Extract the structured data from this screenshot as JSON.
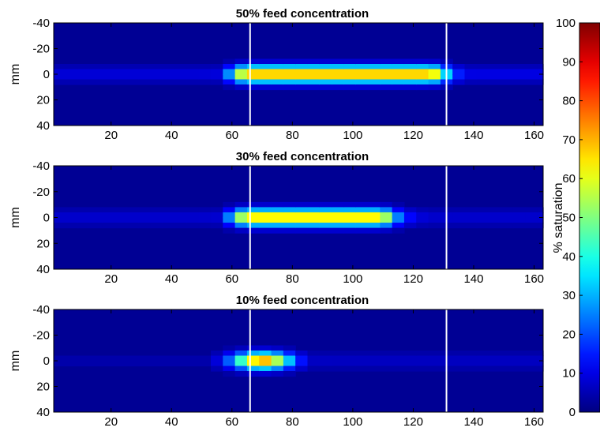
{
  "chart_data": {
    "type": "heatmap",
    "colormap": "jet",
    "x_ticks": [
      20,
      40,
      60,
      80,
      100,
      120,
      140,
      160
    ],
    "y_ticks": [
      -40,
      -20,
      0,
      20,
      40
    ],
    "xlim": [
      1,
      163
    ],
    "ylim": [
      -40,
      40
    ],
    "ylabel": "mm",
    "marker_lines_x": [
      66,
      131
    ],
    "marker_line_color": "#ffffff",
    "panels": [
      {
        "title": "50% feed concentration",
        "ylabel": "mm",
        "peak_saturation": 71,
        "region_x": [
          66,
          125
        ],
        "region_sigma_x": 5,
        "center_y": 0,
        "sigma_y": 4.5,
        "profile_x": [
          58,
          62,
          66,
          70,
          78,
          90,
          100,
          108,
          116,
          124,
          130,
          138
        ],
        "profile_v": [
          12,
          30,
          50,
          62,
          66,
          68,
          70,
          71,
          66,
          55,
          36,
          14
        ]
      },
      {
        "title": "30% feed concentration",
        "ylabel": "mm",
        "peak_saturation": 67,
        "region_x": [
          66,
          108
        ],
        "region_sigma_x": 5,
        "center_y": 0,
        "sigma_y": 4.5,
        "profile_x": [
          58,
          62,
          66,
          70,
          78,
          84,
          90,
          96,
          104,
          110,
          116,
          124
        ],
        "profile_v": [
          10,
          28,
          47,
          60,
          64,
          66,
          67,
          65,
          58,
          44,
          24,
          10
        ]
      },
      {
        "title": "10% feed concentration",
        "ylabel": "mm",
        "peak_saturation": 74,
        "region_x": [
          70,
          70
        ],
        "region_sigma_x": 7,
        "center_y": 0,
        "sigma_y": 4.5,
        "profile_x": [
          54,
          58,
          62,
          66,
          70,
          74,
          78,
          82,
          86
        ],
        "profile_v": [
          4,
          12,
          30,
          55,
          74,
          64,
          44,
          22,
          8
        ]
      }
    ],
    "colorbar": {
      "label": "% saturation",
      "range": [
        0,
        100
      ],
      "ticks": [
        0,
        10,
        20,
        30,
        40,
        50,
        60,
        70,
        80,
        90,
        100
      ]
    }
  }
}
